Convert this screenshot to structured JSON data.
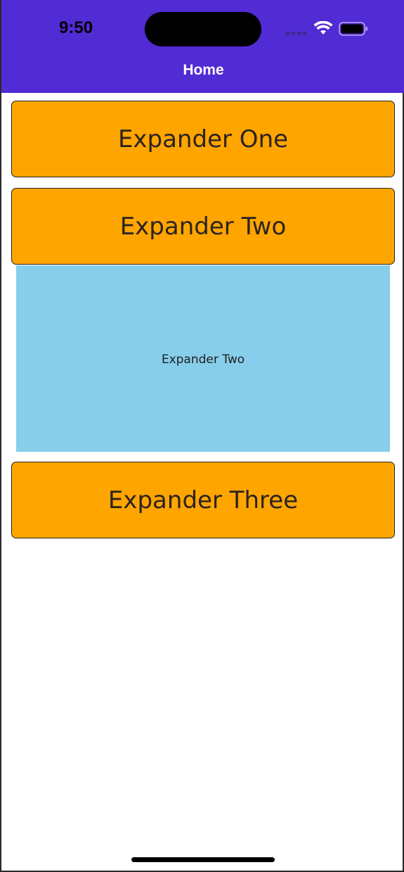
{
  "status_bar": {
    "time": "9:50",
    "icons": [
      "cellular-signal-icon",
      "wifi-icon",
      "battery-icon"
    ]
  },
  "nav": {
    "title": "Home"
  },
  "expanders": [
    {
      "header": "Expander One",
      "expanded": false
    },
    {
      "header": "Expander Two",
      "expanded": true,
      "content": "Expander Two"
    },
    {
      "header": "Expander Three",
      "expanded": false
    }
  ],
  "colors": {
    "nav_bar": "#512bd4",
    "expander_header": "#ffa500",
    "expander_content": "#87ceeb",
    "text": "#2b2420"
  }
}
